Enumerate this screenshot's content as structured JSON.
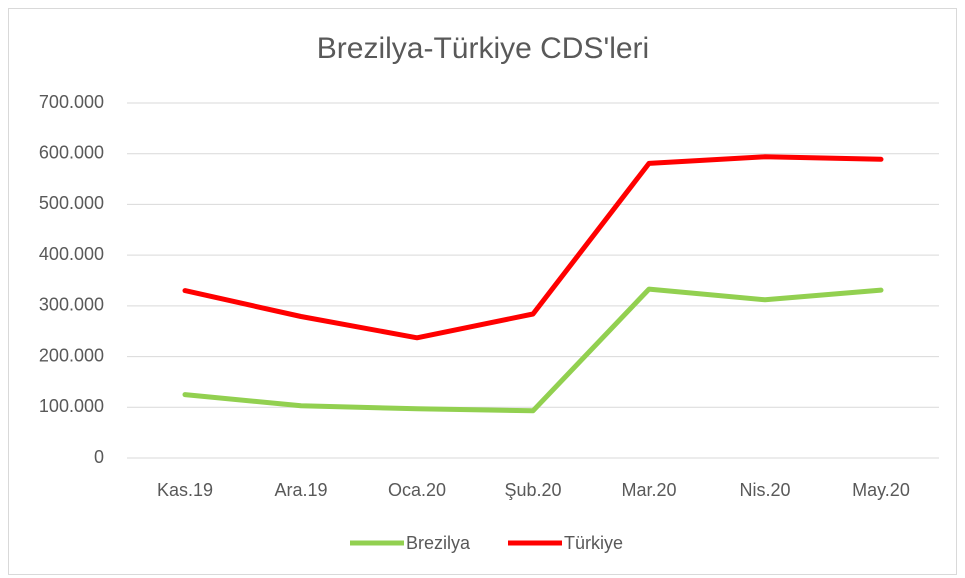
{
  "chart_data": {
    "type": "line",
    "title": "Brezilya-Türkiye CDS'leri",
    "categories": [
      "Kas.19",
      "Ara.19",
      "Oca.20",
      "Şub.20",
      "Mar.20",
      "Nis.20",
      "May.20"
    ],
    "series": [
      {
        "name": "Brezilya",
        "color": "#92d050",
        "values": [
          125,
          103,
          97,
          93,
          333,
          312,
          331
        ]
      },
      {
        "name": "Türkiye",
        "color": "#ff0000",
        "values": [
          330,
          279,
          237,
          284,
          581,
          594,
          589
        ]
      }
    ],
    "ylim": [
      0,
      700
    ],
    "yticks": [
      0,
      {
        "value": 100,
        "label": "100.000"
      },
      {
        "value": 200,
        "label": "200.000"
      },
      {
        "value": 300,
        "label": "300.000"
      },
      {
        "value": 400,
        "label": "400.000"
      },
      {
        "value": 500,
        "label": "500.000"
      },
      {
        "value": 600,
        "label": "600.000"
      },
      {
        "value": 700,
        "label": "700.000"
      }
    ],
    "grid": true,
    "legend": "bottom"
  }
}
